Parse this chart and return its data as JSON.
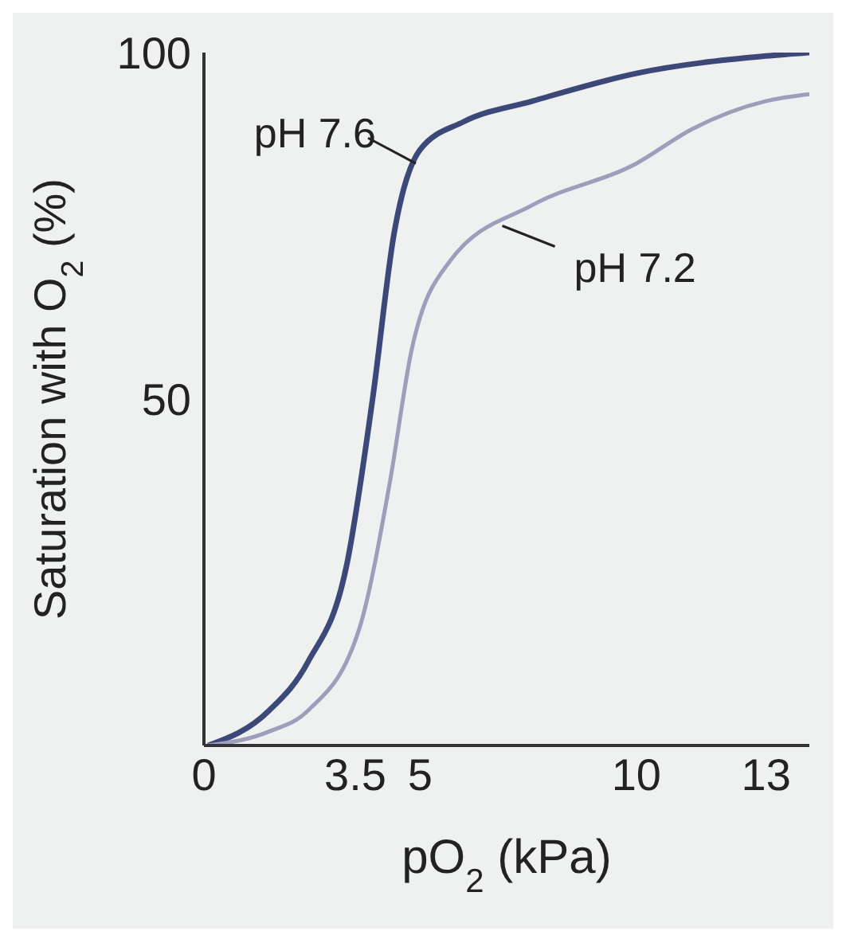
{
  "chart_data": {
    "type": "line",
    "xlabel": "pO$_{2}$ (kPa)",
    "ylabel": "Saturation with O$_{2}$ (%)",
    "xlim": [
      0,
      14
    ],
    "ylim": [
      0,
      100
    ],
    "xticks": [
      0,
      3.5,
      5.0,
      10,
      13
    ],
    "yticks": [
      50,
      100
    ],
    "series": [
      {
        "x": [
          0.1,
          1.5,
          2.4,
          3.3,
          3.9,
          4.4,
          5.0,
          6.0,
          7.6,
          10,
          13,
          14
        ],
        "values": [
          0,
          5,
          12,
          26,
          50,
          74,
          86,
          90,
          93,
          97,
          99.5,
          100
        ],
        "color": "#3b4878"
      },
      {
        "x": [
          0.1,
          1.5,
          2.4,
          3.6,
          4.3,
          4.8,
          5.7,
          7.6,
          10,
          11.3,
          13,
          14
        ],
        "values": [
          0,
          2,
          5,
          17,
          38,
          57,
          70,
          78,
          84,
          89,
          93,
          94
        ],
        "color": "#a09cbc"
      }
    ],
    "annotations": [
      {
        "text": "pH 7.6",
        "x": 4.9,
        "y": 84
      },
      {
        "text": "pH 7.2",
        "x": 6.9,
        "y": 75
      }
    ]
  }
}
